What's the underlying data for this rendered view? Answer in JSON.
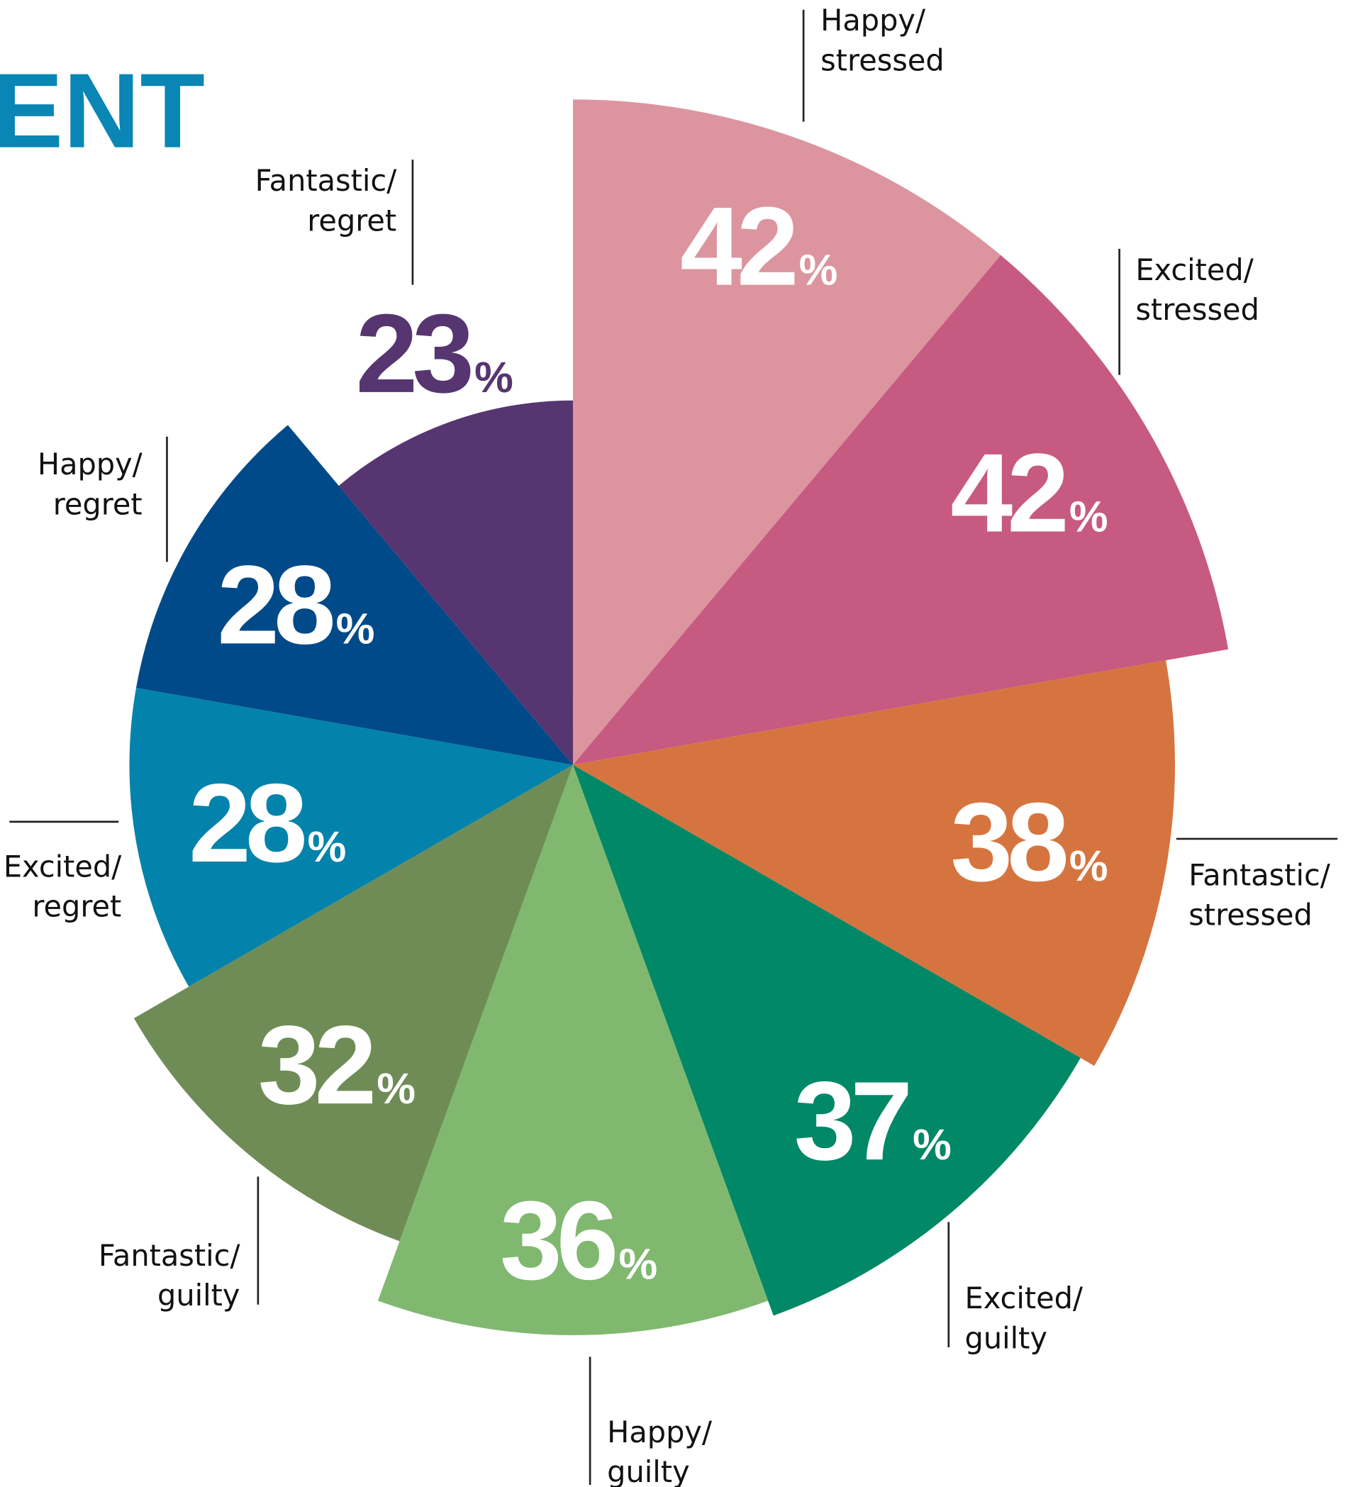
{
  "chart_data": {
    "type": "polar-area",
    "title": "ENT",
    "categories": [
      "Happy/stressed",
      "Excited/stressed",
      "Fantastic/stressed",
      "Excited/guilty",
      "Happy/guilty",
      "Fantastic/guilty",
      "Excited/regret",
      "Happy/regret",
      "Fantastic/regret"
    ],
    "values": [
      42,
      42,
      38,
      37,
      36,
      32,
      28,
      28,
      23
    ],
    "value_labels": [
      "42%",
      "42%",
      "38%",
      "37%",
      "36%",
      "32%",
      "28%",
      "28%",
      "23%"
    ],
    "colors": [
      "#dc959f",
      "#c75a80",
      "#d6743f",
      "#008867",
      "#80b870",
      "#6f8c57",
      "#0383ab",
      "#004a89",
      "#573570"
    ],
    "label_colors": [
      "#ffffff",
      "#ffffff",
      "#ffffff",
      "#ffffff",
      "#ffffff",
      "#ffffff",
      "#ffffff",
      "#ffffff",
      "#573570"
    ]
  }
}
